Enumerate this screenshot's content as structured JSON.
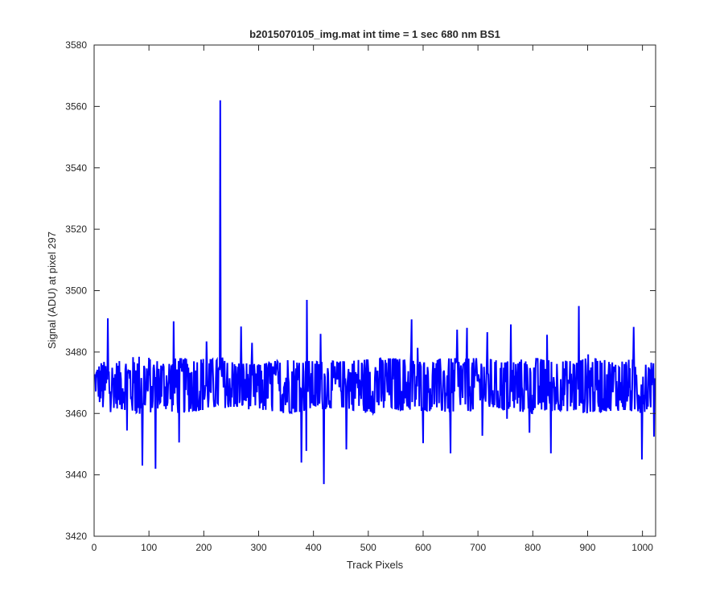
{
  "chart_data": {
    "type": "line",
    "title": "b2015070105_img.mat int time = 1 sec  680 nm BS1",
    "xlabel": "Track Pixels",
    "ylabel": "Signal (ADU) at pixel 297",
    "xlim": [
      0,
      1024
    ],
    "ylim": [
      3420,
      3580
    ],
    "xticks": [
      0,
      100,
      200,
      300,
      400,
      500,
      600,
      700,
      800,
      900,
      1000
    ],
    "yticks": [
      3420,
      3440,
      3460,
      3480,
      3500,
      3520,
      3540,
      3560,
      3580
    ],
    "grid": false,
    "legend": "none",
    "box": true,
    "series": [
      {
        "color": "#0000ff",
        "line_width": 2,
        "n_points": 1024,
        "baseline": 3470,
        "features": [
          {
            "x": 230,
            "y": 3562
          },
          {
            "x": 419,
            "y": 3437
          },
          {
            "x": 388,
            "y": 3497
          },
          {
            "x": 884,
            "y": 3495
          },
          {
            "x": 25,
            "y": 3491
          },
          {
            "x": 145,
            "y": 3490
          },
          {
            "x": 112,
            "y": 3442
          },
          {
            "x": 88,
            "y": 3443
          },
          {
            "x": 378,
            "y": 3444
          },
          {
            "x": 999,
            "y": 3445
          },
          {
            "x": 650,
            "y": 3447
          },
          {
            "x": 833,
            "y": 3447
          }
        ],
        "envelope": [
          [
            0,
            3468,
            3474
          ],
          [
            15,
            3461,
            3477
          ],
          [
            30,
            3462,
            3476
          ],
          [
            60,
            3461,
            3478
          ],
          [
            90,
            3459,
            3479
          ],
          [
            120,
            3462,
            3477
          ],
          [
            150,
            3460,
            3478
          ],
          [
            200,
            3461,
            3478
          ],
          [
            250,
            3462,
            3477
          ],
          [
            300,
            3461,
            3476
          ],
          [
            350,
            3460,
            3478
          ],
          [
            400,
            3461,
            3477
          ],
          [
            450,
            3462,
            3477
          ],
          [
            500,
            3460,
            3478
          ],
          [
            550,
            3461,
            3478
          ],
          [
            600,
            3461,
            3477
          ],
          [
            650,
            3460,
            3478
          ],
          [
            700,
            3461,
            3478
          ],
          [
            750,
            3461,
            3477
          ],
          [
            800,
            3460,
            3478
          ],
          [
            850,
            3461,
            3477
          ],
          [
            900,
            3460,
            3478
          ],
          [
            950,
            3461,
            3477
          ],
          [
            1000,
            3460,
            3478
          ],
          [
            1024,
            3463,
            3476
          ]
        ]
      }
    ]
  }
}
